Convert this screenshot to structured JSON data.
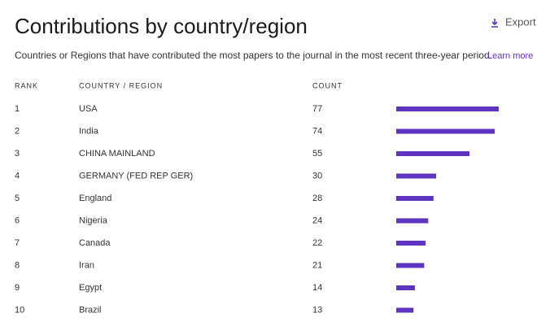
{
  "header": {
    "title": "Contributions by country/region",
    "export": "Export",
    "description": "Countries or Regions that have contributed the most papers to the journal in the most recent three-year period.",
    "learn_more": "Learn more"
  },
  "table": {
    "columns": [
      "RANK",
      "COUNTRY / REGION",
      "COUNT"
    ],
    "rows": [
      [
        1,
        "USA",
        77
      ],
      [
        2,
        "India",
        74
      ],
      [
        3,
        "CHINA MAINLAND",
        55
      ],
      [
        4,
        "GERMANY (FED REP GER)",
        30
      ],
      [
        5,
        "England",
        28
      ],
      [
        6,
        "Nigeria",
        24
      ],
      [
        7,
        "Canada",
        22
      ],
      [
        8,
        "Iran",
        21
      ],
      [
        9,
        "Egypt",
        14
      ],
      [
        10,
        "Brazil",
        13
      ]
    ]
  }
}
